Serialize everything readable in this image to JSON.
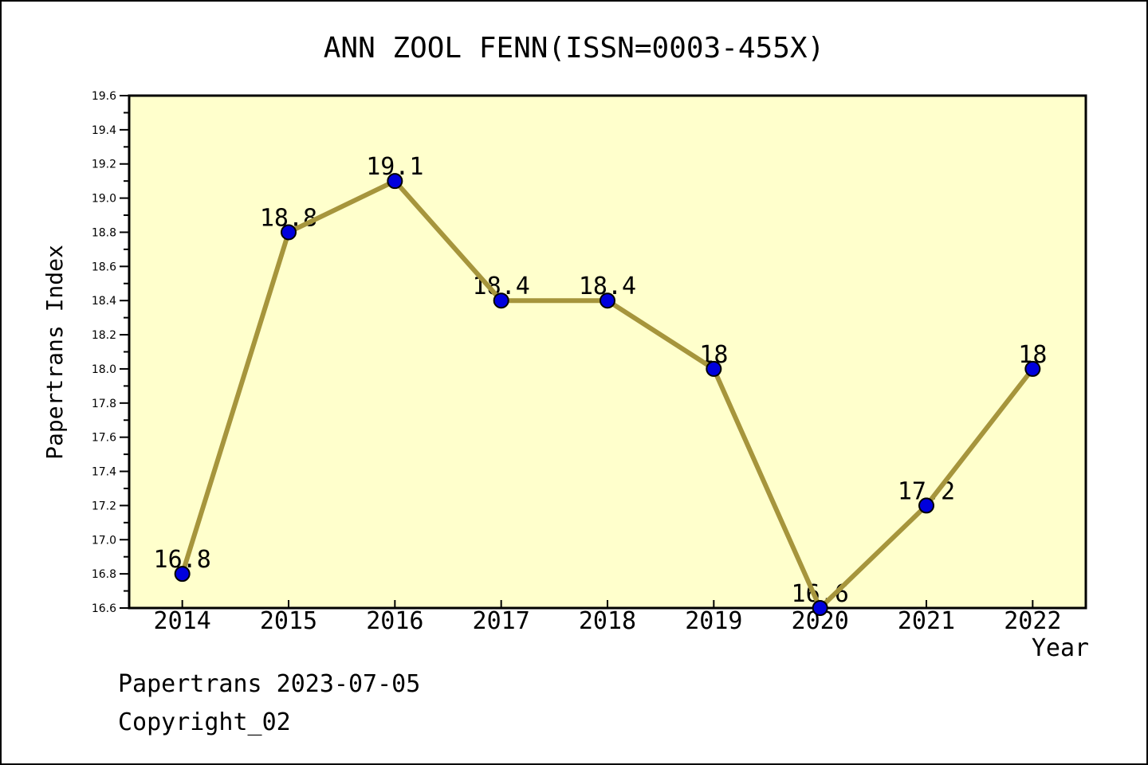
{
  "title": "ANN ZOOL FENN(ISSN=0003-455X)",
  "footer": {
    "line1": "Papertrans 2023-07-05",
    "line2": "Copyright_02"
  },
  "chart_data": {
    "type": "line",
    "title": "ANN ZOOL FENN(ISSN=0003-455X)",
    "xlabel": "Year",
    "ylabel": "Papertrans Index",
    "x": [
      2014,
      2015,
      2016,
      2017,
      2018,
      2019,
      2020,
      2021,
      2022
    ],
    "values": [
      16.8,
      18.8,
      19.1,
      18.4,
      18.4,
      18.0,
      16.6,
      17.2,
      18.0
    ],
    "point_labels": [
      "16.8",
      "18.8",
      "19.1",
      "18.4",
      "18.4",
      "18",
      "16.6",
      "17.2",
      "18"
    ],
    "xlim": [
      2013.5,
      2022.5
    ],
    "ylim": [
      16.6,
      19.6
    ],
    "ytick_major_step": 0.2,
    "ytick_minor_step": 0.1,
    "grid": false,
    "legend": "none",
    "colors": {
      "line": "#A6953C",
      "marker_fill": "#0000DD",
      "marker_edge": "#000000",
      "plot_bg": "#FFFFCC",
      "frame": "#000000",
      "text": "#000000"
    }
  }
}
